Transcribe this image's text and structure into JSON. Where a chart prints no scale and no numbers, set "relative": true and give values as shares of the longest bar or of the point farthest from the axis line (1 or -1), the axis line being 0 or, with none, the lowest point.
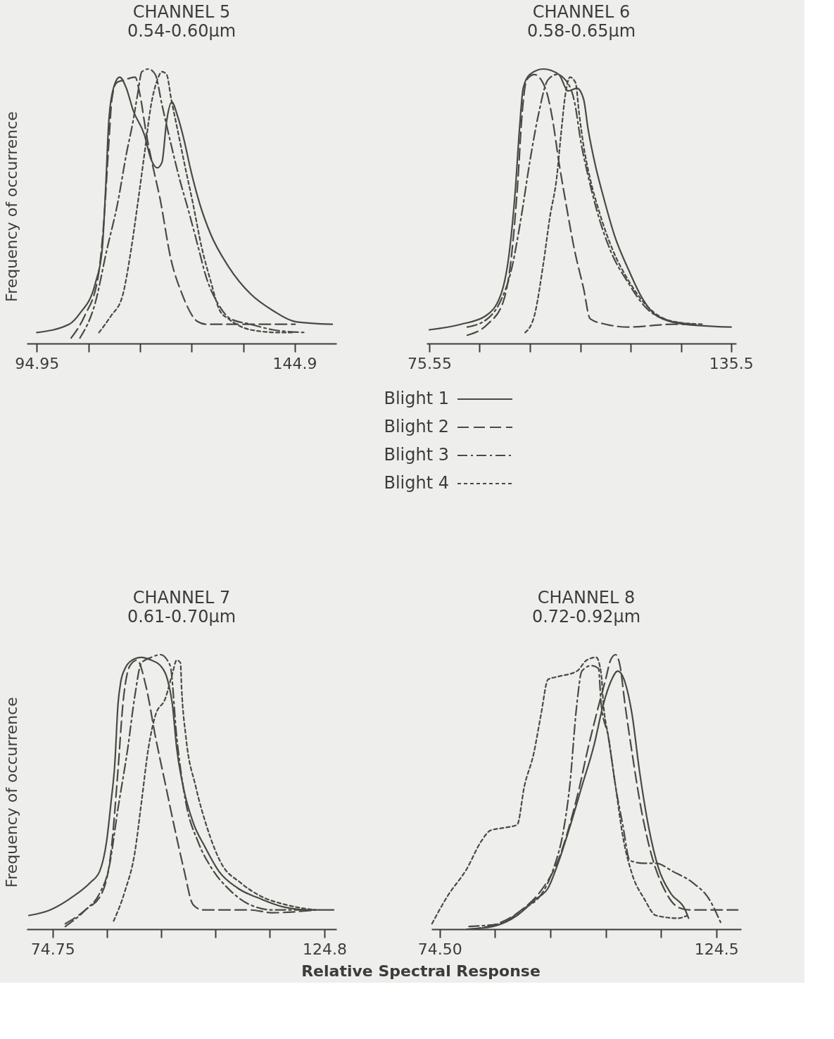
{
  "chart_data": [
    {
      "type": "line",
      "title": "CHANNEL 5",
      "subtitle": "0.54-0.60μm",
      "ylabel": "Frequency of occurrence",
      "relative": true,
      "legend": "bottom",
      "xlim": [
        93,
        153
      ],
      "xticks": [
        94.95,
        {
          "value": 104.95,
          "label": null
        },
        {
          "value": 114.95,
          "label": null
        },
        {
          "value": 124.95,
          "label": null
        },
        {
          "value": 134.95,
          "label": null
        },
        144.9
      ],
      "series": [
        {
          "name": "Blight 1",
          "color": "#4a4a44",
          "line_style": "solid",
          "x": [
            94.95,
            101.2,
            103.3,
            106.3,
            107.6,
            108.3,
            108.9,
            109.8,
            111.0,
            112.3,
            113.6,
            115.8,
            117.1,
            118.3,
            119.2,
            120.1,
            121.1,
            122.2,
            123.5,
            124.8,
            126.5,
            128.6,
            132.1,
            136.4,
            140.7,
            145.0,
            152.2
          ],
          "values": [
            0.04,
            0.07,
            0.11,
            0.22,
            0.34,
            0.57,
            0.81,
            0.93,
            0.97,
            0.93,
            0.85,
            0.76,
            0.67,
            0.64,
            0.66,
            0.81,
            0.88,
            0.83,
            0.74,
            0.63,
            0.51,
            0.4,
            0.28,
            0.18,
            0.12,
            0.08,
            0.07
          ]
        },
        {
          "name": "Blight 2",
          "color": "#4a4a44",
          "line_style": "dashed",
          "x": [
            101.6,
            104.2,
            106.8,
            108.0,
            108.9,
            109.5,
            110.4,
            111.9,
            114.0,
            114.9,
            116.2,
            117.5,
            118.8,
            120.9,
            123.1,
            126.1,
            127.8,
            132.1,
            136.4,
            145.0
          ],
          "values": [
            0.02,
            0.1,
            0.24,
            0.46,
            0.73,
            0.89,
            0.95,
            0.96,
            0.97,
            0.91,
            0.76,
            0.64,
            0.53,
            0.31,
            0.18,
            0.08,
            0.07,
            0.07,
            0.07,
            0.07
          ]
        },
        {
          "name": "Blight 3",
          "color": "#4a4a44",
          "line_style": "dashdot",
          "x": [
            103.3,
            106.3,
            108.5,
            110.6,
            112.3,
            113.6,
            114.5,
            115.3,
            116.6,
            117.9,
            119.2,
            120.9,
            122.6,
            124.4,
            126.1,
            127.8,
            129.9,
            132.5,
            136.4,
            140.7,
            147.1
          ],
          "values": [
            0.02,
            0.15,
            0.34,
            0.51,
            0.69,
            0.81,
            0.91,
            0.99,
            1.0,
            0.98,
            0.87,
            0.73,
            0.6,
            0.48,
            0.36,
            0.24,
            0.15,
            0.09,
            0.07,
            0.05,
            0.04
          ]
        },
        {
          "name": "Blight 4",
          "color": "#4a4a44",
          "line_style": "dotted",
          "x": [
            107.0,
            109.3,
            111.5,
            113.2,
            114.5,
            115.8,
            117.1,
            118.3,
            119.2,
            120.1,
            121.0,
            122.2,
            123.5,
            125.2,
            126.9,
            128.6,
            130.4,
            132.1,
            136.4,
            141.9,
            144.5
          ],
          "values": [
            0.04,
            0.1,
            0.17,
            0.34,
            0.51,
            0.69,
            0.87,
            0.96,
            0.99,
            0.98,
            0.89,
            0.78,
            0.66,
            0.51,
            0.35,
            0.23,
            0.12,
            0.09,
            0.05,
            0.04,
            0.04
          ]
        }
      ]
    },
    {
      "type": "line",
      "title": "CHANNEL 6",
      "subtitle": "0.58-0.65μm",
      "relative": true,
      "xlim": [
        75,
        136.5
      ],
      "xticks": [
        75.55,
        {
          "value": 85.55,
          "label": null
        },
        {
          "value": 95.55,
          "label": null
        },
        {
          "value": 105.55,
          "label": null
        },
        {
          "value": 115.55,
          "label": null
        },
        {
          "value": 125.55,
          "label": null
        },
        135.5
      ],
      "series": [
        {
          "color": "#4a4a44",
          "line_style": "solid",
          "x": [
            75.55,
            81.8,
            86.7,
            89.8,
            91.5,
            92.6,
            93.5,
            94.2,
            95.5,
            98.2,
            101.3,
            103.1,
            104.9,
            106.2,
            107.1,
            108.4,
            110.2,
            112.4,
            115.1,
            117.7,
            120.8,
            126.2,
            135.5
          ],
          "values": [
            0.05,
            0.07,
            0.1,
            0.18,
            0.34,
            0.55,
            0.79,
            0.93,
            0.98,
            1.0,
            0.98,
            0.92,
            0.93,
            0.89,
            0.78,
            0.66,
            0.53,
            0.39,
            0.27,
            0.17,
            0.1,
            0.07,
            0.06
          ]
        },
        {
          "color": "#4a4a44",
          "line_style": "dashed",
          "x": [
            83.1,
            87.1,
            90.2,
            92.0,
            93.1,
            94.0,
            94.9,
            96.4,
            98.6,
            100.0,
            101.3,
            102.6,
            104.4,
            106.2,
            107.5,
            110.6,
            115.1,
            124.0,
            128.4
          ],
          "values": [
            0.03,
            0.07,
            0.15,
            0.34,
            0.58,
            0.84,
            0.96,
            0.98,
            0.93,
            0.82,
            0.66,
            0.52,
            0.34,
            0.2,
            0.09,
            0.07,
            0.06,
            0.07,
            0.07
          ]
        },
        {
          "color": "#4a4a44",
          "line_style": "dashdot",
          "x": [
            83.1,
            87.1,
            89.3,
            92.0,
            93.8,
            95.5,
            97.3,
            99.1,
            100.9,
            102.6,
            104.4,
            105.7,
            107.1,
            108.9,
            111.5,
            115.1,
            118.6,
            124.0,
            128.4
          ],
          "values": [
            0.06,
            0.09,
            0.14,
            0.28,
            0.46,
            0.66,
            0.84,
            0.96,
            0.98,
            0.96,
            0.88,
            0.73,
            0.61,
            0.48,
            0.34,
            0.22,
            0.13,
            0.08,
            0.07
          ]
        },
        {
          "color": "#4a4a44",
          "line_style": "dotted",
          "x": [
            94.6,
            96.4,
            98.2,
            99.5,
            100.9,
            101.7,
            102.6,
            103.5,
            104.6,
            105.3,
            106.2,
            107.5,
            109.3,
            112.0,
            115.1,
            118.6,
            124.0,
            129.7
          ],
          "values": [
            0.04,
            0.1,
            0.29,
            0.46,
            0.61,
            0.76,
            0.91,
            0.97,
            0.95,
            0.84,
            0.72,
            0.6,
            0.48,
            0.34,
            0.23,
            0.14,
            0.08,
            0.07
          ]
        }
      ]
    },
    {
      "type": "line",
      "title": "CHANNEL 7",
      "subtitle": "0.61-0.70μm",
      "ylabel": "Frequency of occurrence",
      "relative": true,
      "xlim": [
        70,
        127
      ],
      "xticks": [
        74.75,
        {
          "value": 84.75,
          "label": null
        },
        {
          "value": 94.75,
          "label": null
        },
        {
          "value": 104.75,
          "label": null
        },
        {
          "value": 114.75,
          "label": null
        },
        124.8
      ],
      "series": [
        {
          "color": "#4a4a44",
          "line_style": "solid",
          "x": [
            70.4,
            74.3,
            78.6,
            81.7,
            83.4,
            84.7,
            85.5,
            86.2,
            86.8,
            87.3,
            88.1,
            89.4,
            91.1,
            92.9,
            94.6,
            95.9,
            96.8,
            97.6,
            98.9,
            100.6,
            102.8,
            105.4,
            108.8,
            113.1,
            117.5,
            122.6,
            126.5
          ],
          "values": [
            0.05,
            0.07,
            0.12,
            0.17,
            0.21,
            0.32,
            0.46,
            0.6,
            0.82,
            0.9,
            0.95,
            0.98,
            0.99,
            0.98,
            0.96,
            0.91,
            0.82,
            0.66,
            0.51,
            0.39,
            0.3,
            0.21,
            0.15,
            0.11,
            0.08,
            0.07,
            0.07
          ]
        },
        {
          "color": "#4a4a44",
          "line_style": "dashed",
          "x": [
            77.1,
            80.8,
            83.8,
            85.5,
            86.8,
            87.7,
            89.0,
            90.3,
            92.0,
            93.7,
            95.5,
            97.2,
            98.9,
            100.6,
            102.4,
            106.7,
            111.0,
            115.3,
            123.1
          ],
          "values": [
            0.02,
            0.07,
            0.13,
            0.28,
            0.58,
            0.82,
            0.96,
            0.98,
            0.88,
            0.7,
            0.53,
            0.37,
            0.22,
            0.09,
            0.07,
            0.07,
            0.07,
            0.06,
            0.07
          ]
        },
        {
          "color": "#4a4a44",
          "line_style": "dashdot",
          "x": [
            77.1,
            80.8,
            83.4,
            85.1,
            86.8,
            88.6,
            89.9,
            91.1,
            92.9,
            94.6,
            96.4,
            97.6,
            99.3,
            101.5,
            104.1,
            107.5,
            111.0,
            115.3,
            123.1
          ],
          "values": [
            0.01,
            0.07,
            0.13,
            0.22,
            0.44,
            0.66,
            0.85,
            0.97,
            0.99,
            1.0,
            0.96,
            0.7,
            0.46,
            0.32,
            0.22,
            0.14,
            0.09,
            0.07,
            0.07
          ]
        },
        {
          "color": "#4a4a44",
          "line_style": "dotted",
          "x": [
            86.0,
            88.1,
            89.9,
            91.1,
            92.4,
            93.7,
            95.5,
            96.8,
            97.6,
            98.3,
            98.5,
            99.3,
            101.1,
            103.2,
            105.8,
            109.3,
            113.1,
            117.5,
            123.1
          ],
          "values": [
            0.03,
            0.14,
            0.28,
            0.46,
            0.66,
            0.78,
            0.84,
            0.93,
            0.98,
            0.97,
            0.88,
            0.7,
            0.52,
            0.37,
            0.24,
            0.17,
            0.12,
            0.09,
            0.07
          ]
        }
      ]
    },
    {
      "type": "line",
      "title": "CHANNEL 8",
      "subtitle": "0.72-0.92μm",
      "xlabel": "Relative Spectral Response",
      "relative": true,
      "xlim": [
        73,
        129
      ],
      "xticks": [
        {
          "value": 74.5,
          "label": "74.50"
        },
        {
          "value": 84.5,
          "label": null
        },
        {
          "value": 94.5,
          "label": null
        },
        {
          "value": 104.5,
          "label": null
        },
        {
          "value": 114.5,
          "label": null
        },
        124.5
      ],
      "series": [
        {
          "color": "#4a4a44",
          "line_style": "solid",
          "x": [
            79.4,
            84.1,
            88.5,
            91.9,
            94.1,
            95.9,
            98.0,
            100.2,
            102.4,
            104.1,
            105.4,
            106.7,
            108.0,
            109.3,
            110.6,
            112.3,
            114.1,
            116.3,
            118.9,
            119.5
          ],
          "values": [
            0.0,
            0.01,
            0.05,
            0.11,
            0.15,
            0.24,
            0.37,
            0.52,
            0.67,
            0.82,
            0.9,
            0.94,
            0.9,
            0.78,
            0.58,
            0.37,
            0.22,
            0.13,
            0.07,
            0.04
          ]
        },
        {
          "color": "#4a4a44",
          "line_style": "dashed",
          "x": [
            79.8,
            85.0,
            89.3,
            92.8,
            95.9,
            98.0,
            99.8,
            101.1,
            102.8,
            104.5,
            105.4,
            106.3,
            107.1,
            108.0,
            109.3,
            111.0,
            112.8,
            115.0,
            117.6,
            119.7,
            124.1,
            128.4
          ],
          "values": [
            0.0,
            0.02,
            0.07,
            0.14,
            0.25,
            0.38,
            0.52,
            0.64,
            0.78,
            0.91,
            0.98,
            1.0,
            0.96,
            0.82,
            0.64,
            0.43,
            0.27,
            0.15,
            0.08,
            0.07,
            0.07,
            0.07
          ]
        },
        {
          "color": "#4a4a44",
          "line_style": "dashdot",
          "x": [
            79.8,
            85.4,
            89.3,
            93.3,
            95.4,
            96.7,
            98.0,
            99.3,
            100.2,
            101.9,
            103.2,
            103.7,
            105.0,
            106.3,
            107.6,
            108.9,
            111.5,
            113.6,
            116.7,
            120.2,
            123.2,
            125.4
          ],
          "values": [
            0.01,
            0.02,
            0.07,
            0.14,
            0.24,
            0.34,
            0.52,
            0.82,
            0.94,
            0.96,
            0.95,
            0.82,
            0.7,
            0.52,
            0.38,
            0.25,
            0.24,
            0.24,
            0.21,
            0.17,
            0.11,
            0.02
          ]
        },
        {
          "color": "#4a4a44",
          "line_style": "dotted",
          "x": [
            73.1,
            75.9,
            79.4,
            82.0,
            83.7,
            86.3,
            88.5,
            89.8,
            91.5,
            92.8,
            94.1,
            95.9,
            99.3,
            101.1,
            102.8,
            103.7,
            104.1,
            105.0,
            106.3,
            107.6,
            109.3,
            111.5,
            113.6,
            117.6,
            119.3
          ],
          "values": [
            0.02,
            0.12,
            0.22,
            0.32,
            0.36,
            0.37,
            0.38,
            0.52,
            0.64,
            0.78,
            0.91,
            0.92,
            0.94,
            0.98,
            0.99,
            0.93,
            0.82,
            0.7,
            0.52,
            0.34,
            0.2,
            0.11,
            0.05,
            0.04,
            0.05
          ]
        }
      ]
    }
  ]
}
